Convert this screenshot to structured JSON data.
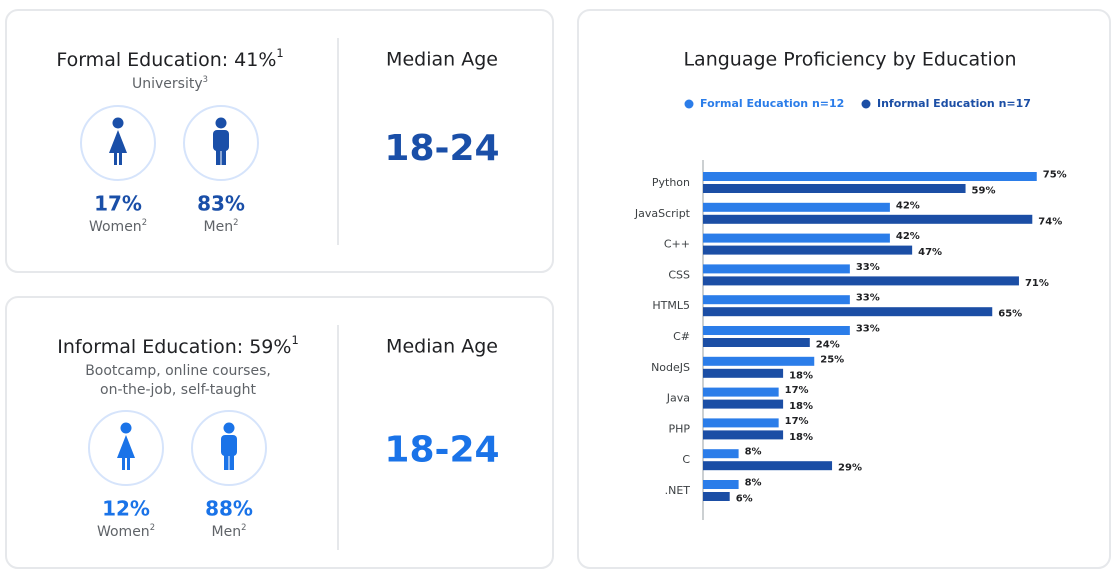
{
  "cards": [
    {
      "title": "Formal Education: 41%",
      "title_note": "1",
      "subtitle": [
        "University"
      ],
      "subtitle_note": "3",
      "color": "#1a4fa8",
      "women": {
        "value": "17%",
        "label": "Women",
        "note": "2"
      },
      "men": {
        "value": "83%",
        "label": "Men",
        "note": "2"
      },
      "median_label": "Median Age",
      "median_value": "18-24"
    },
    {
      "title": "Informal Education: 59%",
      "title_note": "1",
      "subtitle": [
        "Bootcamp, online courses,",
        "on-the-job, self-taught"
      ],
      "color": "#1a73e8",
      "women": {
        "value": "12%",
        "label": "Women",
        "note": "2"
      },
      "men": {
        "value": "88%",
        "label": "Men",
        "note": "2"
      },
      "median_label": "Median Age",
      "median_value": "18-24"
    }
  ],
  "chart_data": {
    "type": "hbar",
    "title": "Language Proficiency by Education",
    "categories": [
      "Python",
      "JavaScript",
      "C++",
      "CSS",
      "HTML5",
      "C#",
      "NodeJS",
      "Java",
      "PHP",
      "C",
      ".NET"
    ],
    "series": [
      {
        "name": "Formal Education n=12",
        "color": "#2b7de9",
        "values": [
          75,
          42,
          42,
          33,
          33,
          33,
          25,
          17,
          17,
          8,
          8
        ],
        "value_labels": [
          "75%",
          "42%",
          "42%",
          "33%",
          "33%",
          "33%",
          "25%",
          "17%",
          "17%",
          "8%",
          "8%"
        ]
      },
      {
        "name": "Informal Education n=17",
        "color": "#1b4ea5",
        "values": [
          59,
          74,
          47,
          71,
          65,
          24,
          18,
          18,
          18,
          29,
          6
        ],
        "value_labels": [
          "59%",
          "74%",
          "47%",
          "71%",
          "65%",
          "24%",
          "18%",
          "18%",
          "18%",
          "29%",
          "6%"
        ]
      }
    ]
  }
}
